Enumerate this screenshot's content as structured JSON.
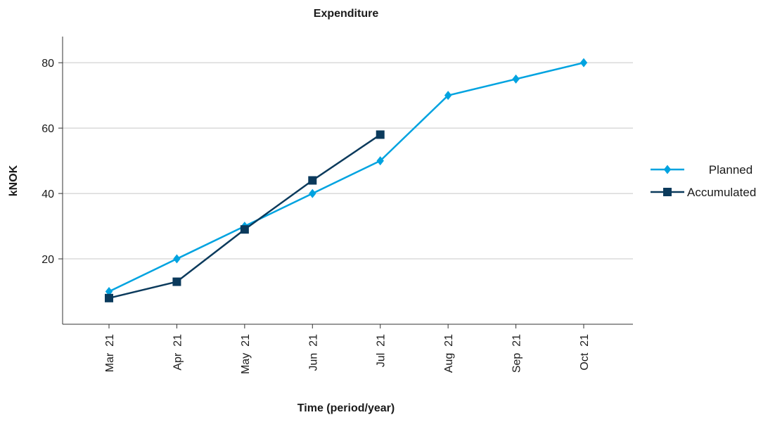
{
  "chart_data": {
    "type": "line",
    "title": "Expenditure",
    "xlabel": "Time (period/year)",
    "ylabel": "kNOK",
    "categories": [
      "Mar  21",
      "Apr  21",
      "May  21",
      "Jun  21",
      "Jul  21",
      "Aug  21",
      "Sep  21",
      "Oct  21"
    ],
    "ylim": [
      0,
      88
    ],
    "yticks": [
      20,
      40,
      60,
      80
    ],
    "grid": true,
    "legend": "right",
    "series": [
      {
        "name": "Planned",
        "values": [
          10,
          20,
          30,
          40,
          50,
          70,
          75,
          80
        ],
        "color": "#00a3e0",
        "marker": "diamond"
      },
      {
        "name": "Accumulated",
        "values": [
          8,
          13,
          29,
          44,
          58,
          null,
          null,
          null
        ],
        "color": "#0b3a5c",
        "marker": "square"
      }
    ]
  }
}
